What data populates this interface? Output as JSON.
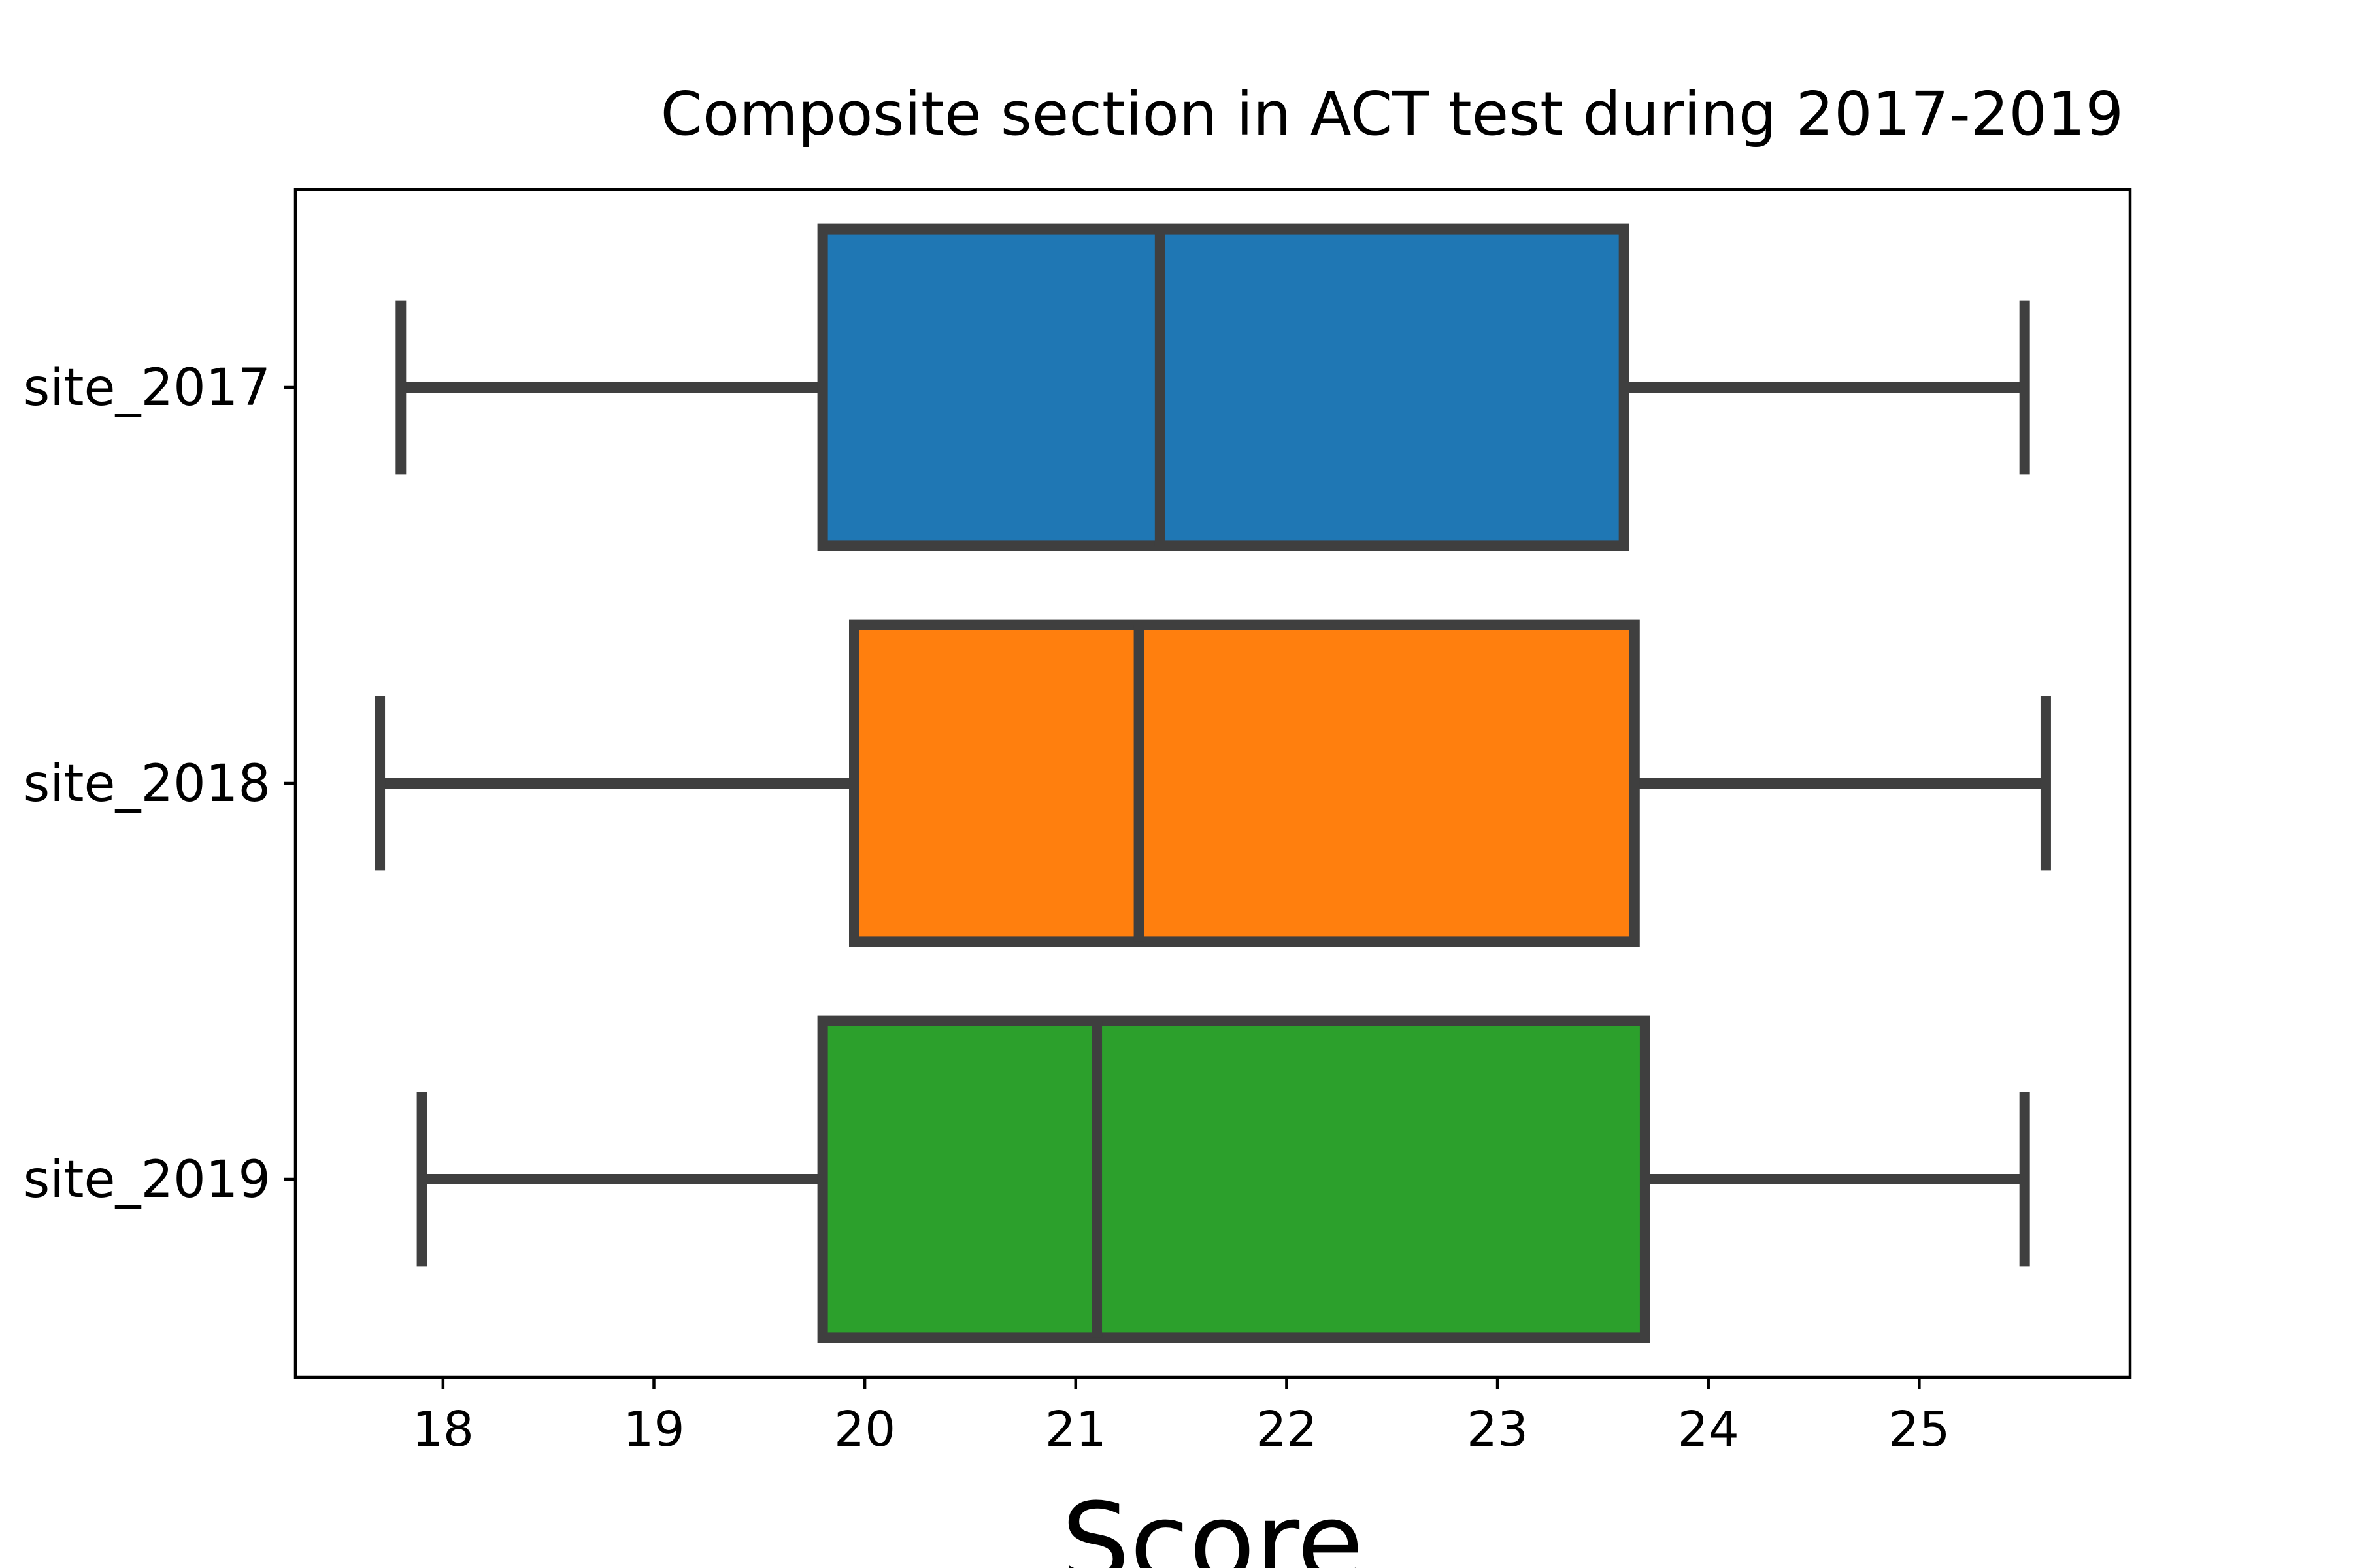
{
  "chart_data": {
    "type": "box",
    "orientation": "horizontal",
    "title": "Composite section in ACT test during 2017-2019",
    "xlabel": "Score",
    "ylabel": "",
    "xlim": [
      17.3,
      26.0
    ],
    "x_ticks": [
      18,
      19,
      20,
      21,
      22,
      23,
      24,
      25
    ],
    "y_tick_labels": [
      "site_2017",
      "site_2018",
      "site_2019"
    ],
    "grid": false,
    "legend": false,
    "series": [
      {
        "category": "site_2017",
        "whisker_low": 17.8,
        "q1": 19.8,
        "median": 21.4,
        "q3": 23.6,
        "whisker_high": 25.5,
        "color": "#1f77b4"
      },
      {
        "category": "site_2018",
        "whisker_low": 17.7,
        "q1": 19.95,
        "median": 21.3,
        "q3": 23.65,
        "whisker_high": 25.6,
        "color": "#ff7f0e"
      },
      {
        "category": "site_2019",
        "whisker_low": 17.9,
        "q1": 19.8,
        "median": 21.1,
        "q3": 23.7,
        "whisker_high": 25.5,
        "color": "#2ca02c"
      }
    ],
    "edge_color": "#3f3f3f"
  }
}
